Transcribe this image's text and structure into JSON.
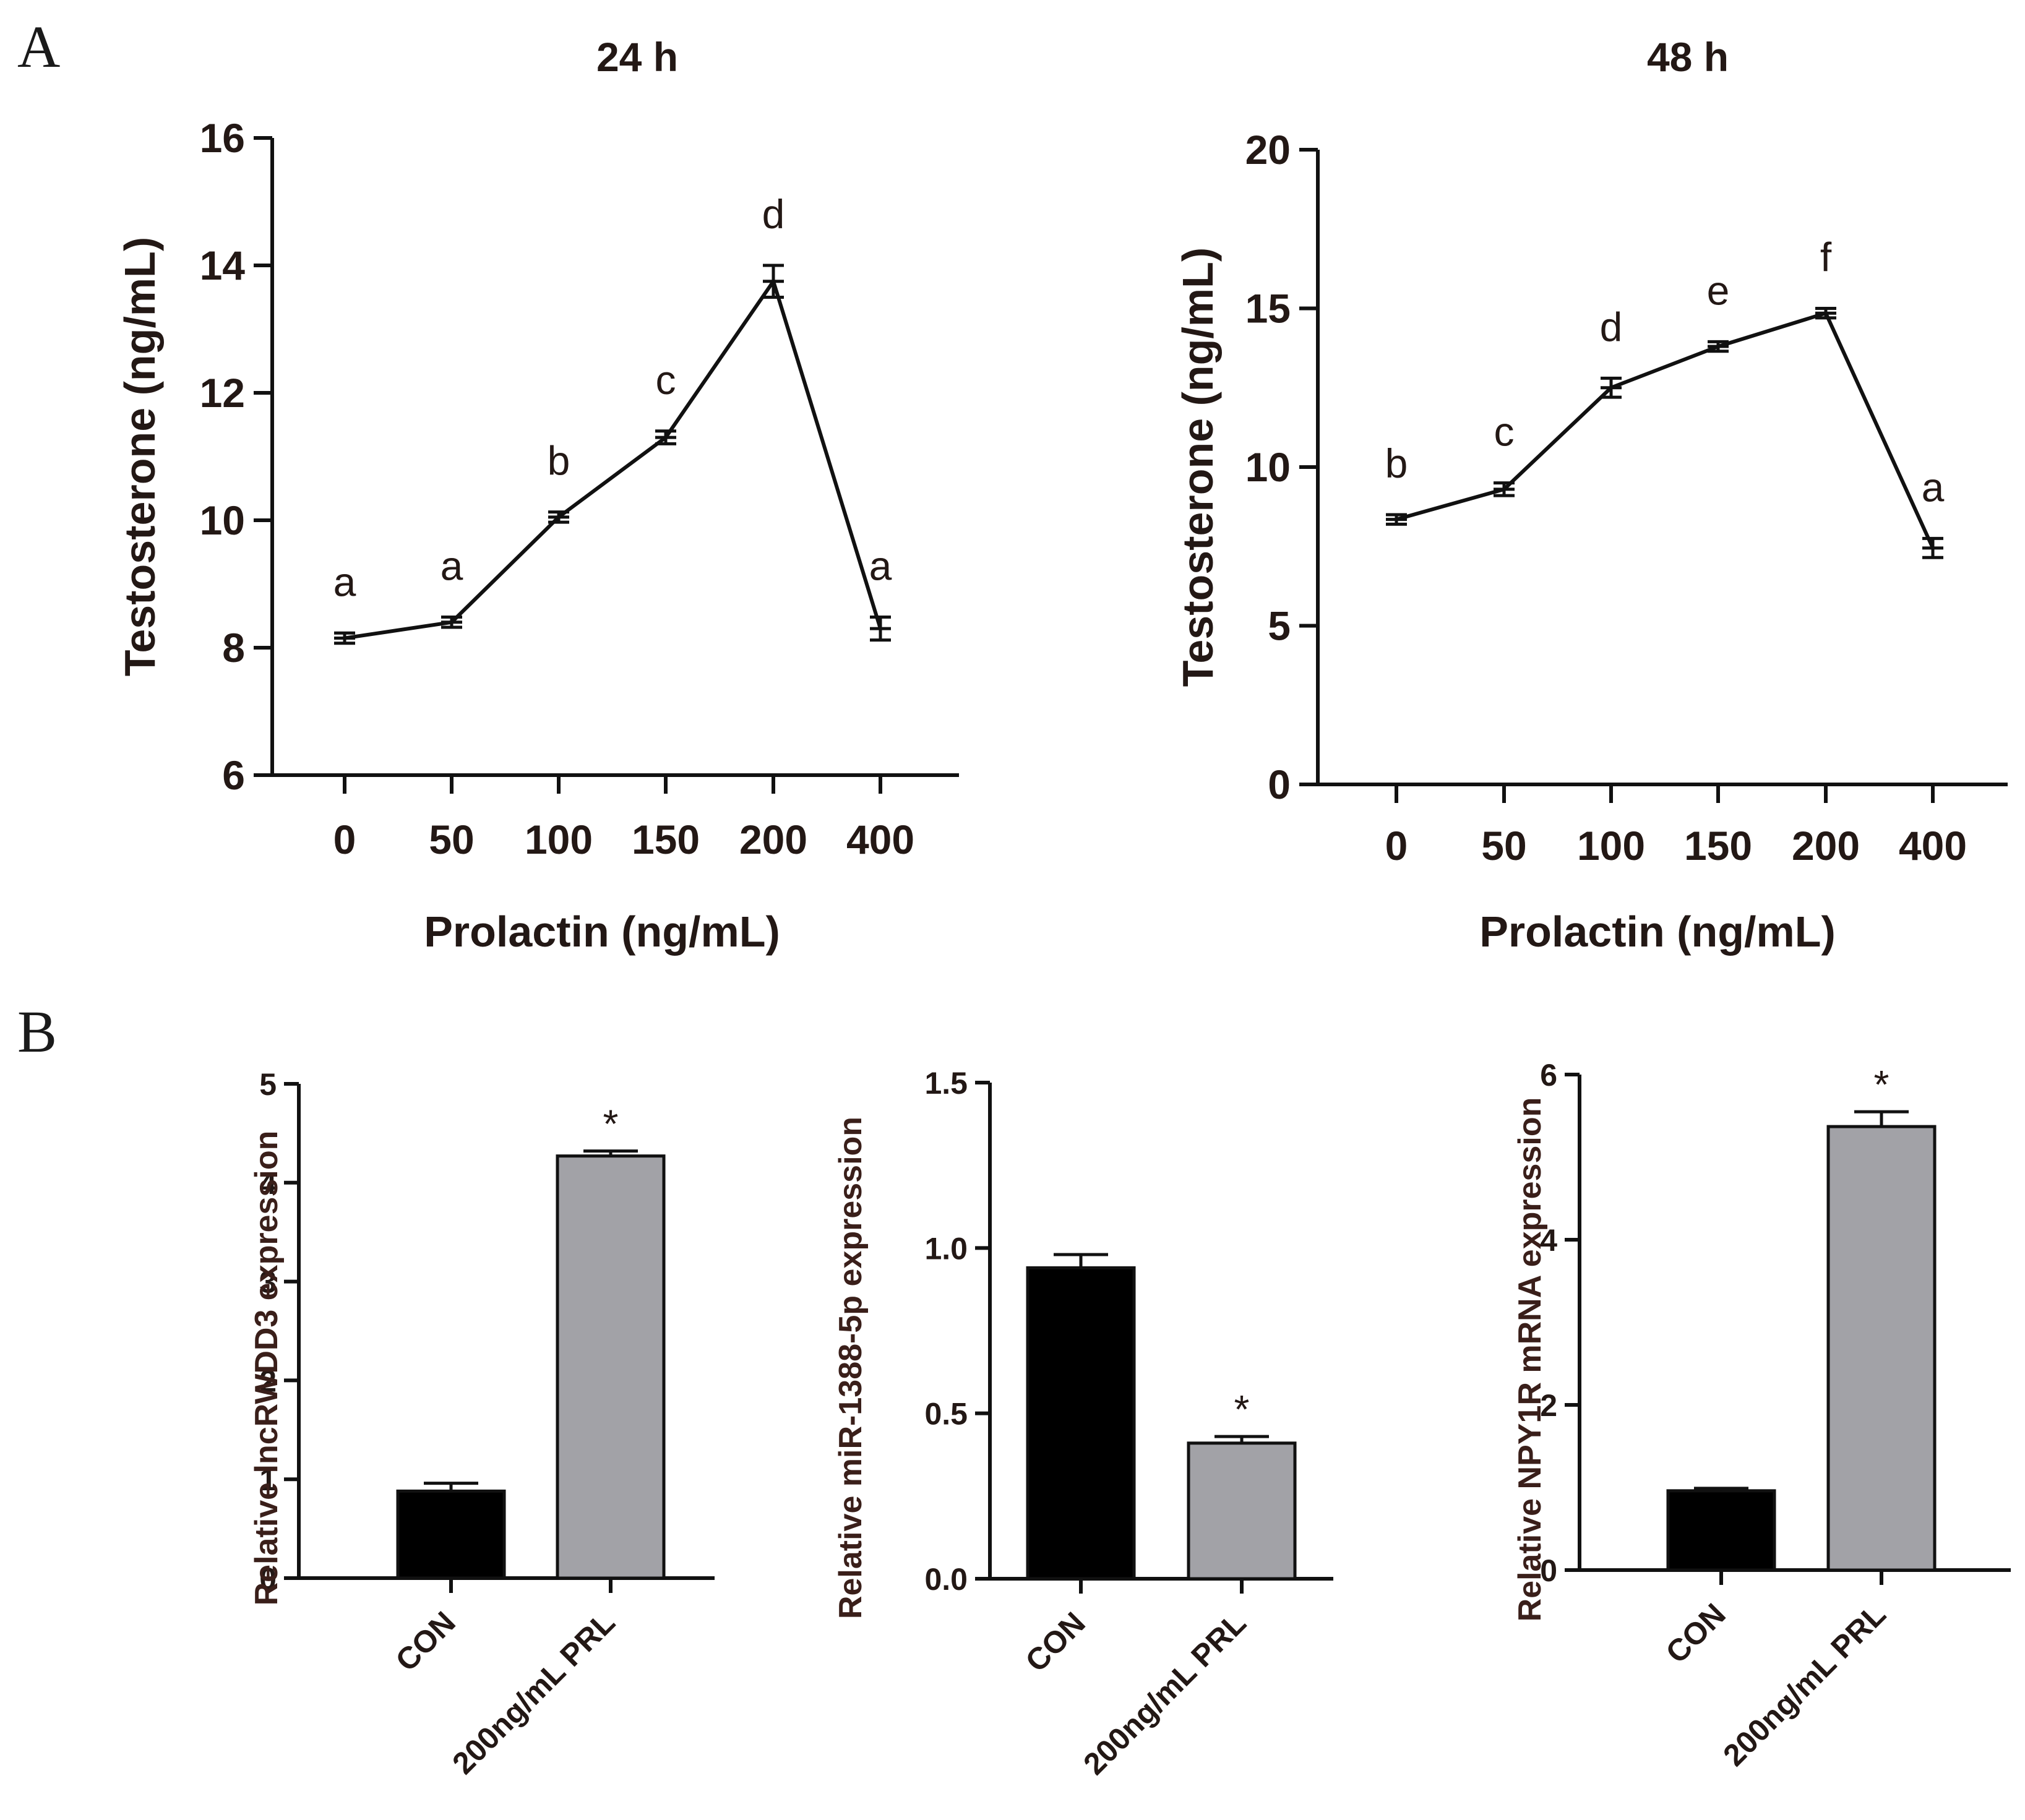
{
  "panel_labels": {
    "a": "A",
    "b": "B"
  },
  "chart_data": [
    {
      "id": "A-24h",
      "type": "line",
      "title": "24  h",
      "xlabel": "Prolactin (ng/mL)",
      "ylabel": "Testosterone (ng/mL)",
      "categories": [
        "0",
        "50",
        "100",
        "150",
        "200",
        "400"
      ],
      "values": [
        8.15,
        8.4,
        10.05,
        11.3,
        13.75,
        8.3
      ],
      "errors": [
        0.08,
        0.08,
        0.08,
        0.1,
        0.25,
        0.18
      ],
      "significance": [
        "a",
        "a",
        "b",
        "c",
        "d",
        "a"
      ],
      "ylim": [
        6,
        16
      ],
      "yticks": [
        "6",
        "8",
        "10",
        "12",
        "14",
        "16"
      ],
      "grid": false,
      "line_color": "#111111"
    },
    {
      "id": "A-48h",
      "type": "line",
      "title": "48  h",
      "xlabel": "Prolactin (ng/mL)",
      "ylabel": "Testosterone (ng/mL)",
      "categories": [
        "0",
        "50",
        "100",
        "150",
        "200",
        "400"
      ],
      "values": [
        8.35,
        9.3,
        12.5,
        13.8,
        14.85,
        7.45
      ],
      "errors": [
        0.15,
        0.2,
        0.3,
        0.15,
        0.15,
        0.3
      ],
      "significance": [
        "b",
        "c",
        "d",
        "e",
        "f",
        "a"
      ],
      "ylim": [
        0,
        20
      ],
      "yticks": [
        "0",
        "5",
        "10",
        "15",
        "20"
      ],
      "grid": false,
      "line_color": "#111111"
    },
    {
      "id": "B-lnc",
      "type": "bar",
      "ylabel": "Relative lncRWDD3 expression",
      "categories": [
        "CON",
        "200ng/mL PRL"
      ],
      "values": [
        0.88,
        4.27
      ],
      "errors": [
        0.08,
        0.05
      ],
      "annotations": [
        "",
        "*"
      ],
      "colors": [
        "#000000",
        "#a2a2a7"
      ],
      "ylim": [
        0,
        5
      ],
      "yticks": [
        "0",
        "1",
        "2",
        "3",
        "4",
        "5"
      ],
      "grid": false
    },
    {
      "id": "B-mir",
      "type": "bar",
      "ylabel": "Relative miR-1388-5p expression",
      "categories": [
        "CON",
        "200ng/mL PRL"
      ],
      "values": [
        0.94,
        0.41
      ],
      "errors": [
        0.04,
        0.02
      ],
      "annotations": [
        "",
        "*"
      ],
      "colors": [
        "#000000",
        "#a2a2a7"
      ],
      "ylim": [
        0,
        1.5
      ],
      "yticks": [
        "0.0",
        "0.5",
        "1.0",
        "1.5"
      ],
      "grid": false
    },
    {
      "id": "B-npy",
      "type": "bar",
      "ylabel": "Relative NPY1R mRNA expression",
      "categories": [
        "CON",
        "200ng/mL PRL"
      ],
      "values": [
        0.96,
        5.37
      ],
      "errors": [
        0.03,
        0.18
      ],
      "annotations": [
        "",
        "*"
      ],
      "colors": [
        "#000000",
        "#a2a2a7"
      ],
      "ylim": [
        0,
        6
      ],
      "yticks": [
        "0",
        "2",
        "4",
        "6"
      ],
      "grid": false
    }
  ]
}
